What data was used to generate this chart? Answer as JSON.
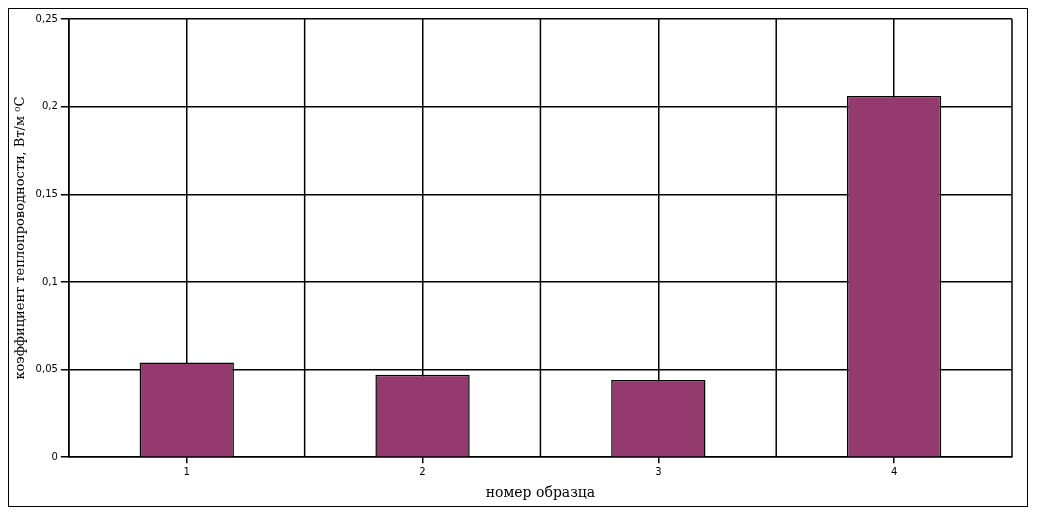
{
  "chart_data": {
    "type": "bar",
    "xlabel": "номер образца",
    "ylabel": "коэффициент теплопроводности, Вт/м ⁰С",
    "categories": [
      "1",
      "2",
      "3",
      "4"
    ],
    "values": [
      0.054,
      0.047,
      0.044,
      0.206
    ],
    "color": "#953a6e",
    "ylim": [
      0,
      0.25
    ],
    "yticks": [
      {
        "value": 0,
        "label": "0"
      },
      {
        "value": 0.05,
        "label": "0,05"
      },
      {
        "value": 0.1,
        "label": "0,1"
      },
      {
        "value": 0.15,
        "label": "0,15"
      },
      {
        "value": 0.2,
        "label": "0,2"
      },
      {
        "value": 0.25,
        "label": "0,25"
      }
    ],
    "grid": true,
    "legend": false
  }
}
